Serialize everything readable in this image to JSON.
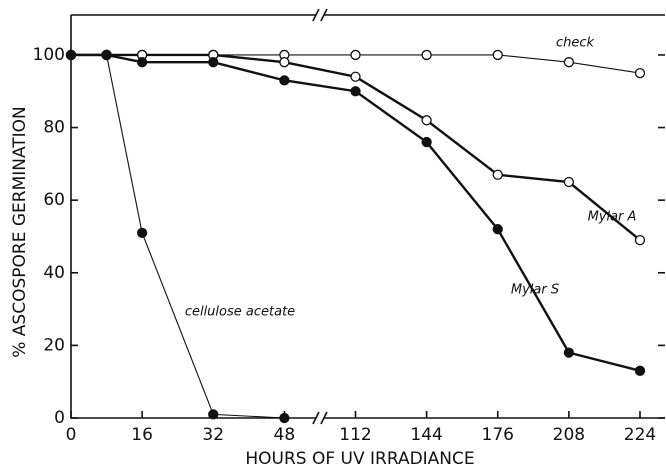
{
  "chart_data": {
    "type": "line",
    "x_label": "HOURS OF UV IRRADIANCE",
    "y_label": "% ASCOSPORE GERMINATION",
    "xlim": [
      0,
      224
    ],
    "xticks": [
      0,
      16,
      32,
      48,
      112,
      144,
      176,
      208,
      224
    ],
    "ylim": [
      0,
      111
    ],
    "yticks": [
      0,
      20,
      40,
      60,
      80,
      100
    ],
    "axis_break": [
      48,
      112
    ],
    "series": [
      {
        "name": "check",
        "color": "#111111",
        "marker": "open",
        "weight": "thin",
        "x": [
          0,
          8,
          16,
          32,
          48,
          112,
          144,
          176,
          208,
          224
        ],
        "values": [
          100,
          100,
          100,
          100,
          100,
          100,
          100,
          100,
          98,
          95
        ]
      },
      {
        "name": "Mylar A",
        "color": "#111111",
        "marker": "open",
        "weight": "thick",
        "x": [
          0,
          8,
          16,
          32,
          48,
          112,
          144,
          176,
          208,
          224
        ],
        "values": [
          100,
          100,
          100,
          100,
          98,
          94,
          82,
          67,
          65,
          49
        ]
      },
      {
        "name": "Mylar S",
        "color": "#111111",
        "marker": "filled",
        "weight": "thick",
        "x": [
          0,
          8,
          16,
          32,
          48,
          112,
          144,
          176,
          208,
          224
        ],
        "values": [
          100,
          100,
          98,
          98,
          93,
          90,
          76,
          52,
          18,
          13
        ]
      },
      {
        "name": "cellulose acetate",
        "color": "#111111",
        "marker": "filled",
        "weight": "thin",
        "x": [
          0,
          8,
          16,
          32,
          48
        ],
        "values": [
          100,
          100,
          51,
          1,
          0
        ]
      }
    ]
  }
}
